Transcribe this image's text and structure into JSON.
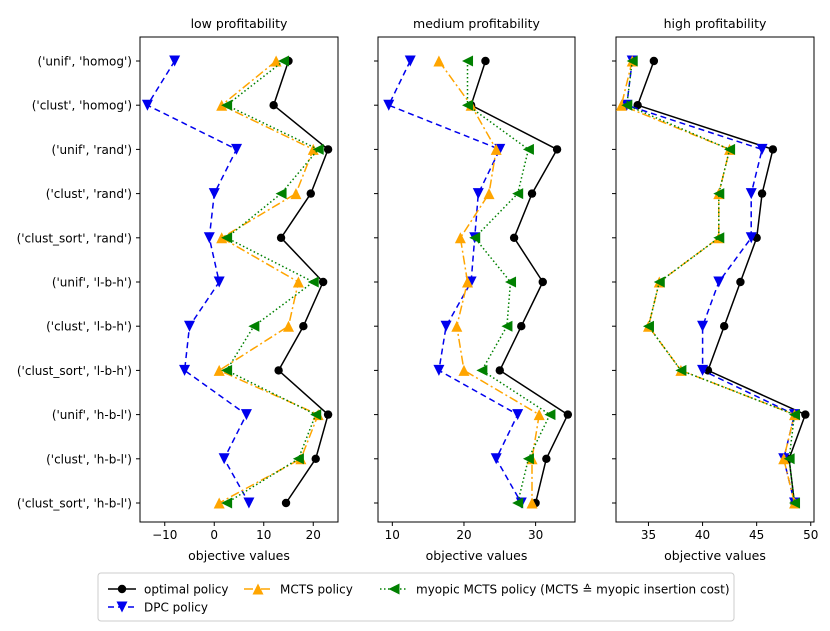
{
  "chart_data": {
    "type": "line",
    "categories": [
      "('unif', 'homog')",
      "('clust', 'homog')",
      "('unif', 'rand')",
      "('clust', 'rand')",
      "('clust_sort', 'rand')",
      "('unif', 'l-b-h')",
      "('clust', 'l-b-h')",
      "('clust_sort', 'l-b-h')",
      "('unif', 'h-b-l')",
      "('clust', 'h-b-l')",
      "('clust_sort', 'h-b-l')"
    ],
    "xlabel": "objective values",
    "legend_position": "bottom-center",
    "series_styles": [
      {
        "name": "optimal policy",
        "color": "#000000",
        "dash": "",
        "marker": "circle"
      },
      {
        "name": "DPC policy",
        "color": "#0000ee",
        "dash": "6,4",
        "marker": "triangle-down"
      },
      {
        "name": "MCTS policy",
        "color": "#ffa500",
        "dash": "9,3,2,3",
        "marker": "triangle-up"
      },
      {
        "name": "myopic MCTS policy (MCTS ≙ myopic insertion cost)",
        "color": "#008000",
        "dash": "1.5,2.5",
        "marker": "triangle-left"
      }
    ],
    "panels": [
      {
        "title": "low profitability",
        "xlim": [
          -15,
          25
        ],
        "xticks": [
          -10,
          0,
          10,
          20
        ],
        "series": [
          {
            "name": "optimal policy",
            "values": [
              15,
              12,
              23,
              19.5,
              13.5,
              22,
              18,
              13,
              23,
              20.5,
              14.5
            ]
          },
          {
            "name": "DPC policy",
            "values": [
              -8,
              -13.5,
              4.5,
              0,
              -1,
              1,
              -5,
              -6,
              6.5,
              2,
              7
            ]
          },
          {
            "name": "MCTS policy",
            "values": [
              12.5,
              1.5,
              20,
              16.5,
              1.5,
              17,
              15,
              1,
              21,
              17.5,
              1
            ]
          },
          {
            "name": "myopic MCTS policy (MCTS ≙ myopic insertion cost)",
            "values": [
              14,
              2.5,
              21,
              13.5,
              2.5,
              20,
              8,
              2.5,
              20.5,
              17,
              2.5
            ]
          }
        ]
      },
      {
        "title": "medium profitability",
        "xlim": [
          8,
          35.5
        ],
        "xticks": [
          10,
          20,
          30
        ],
        "series": [
          {
            "name": "optimal policy",
            "values": [
              23,
              21,
              33,
              29.5,
              27,
              31,
              28,
              25,
              34.5,
              31.5,
              30
            ]
          },
          {
            "name": "DPC policy",
            "values": [
              12.5,
              9.5,
              25,
              22,
              21.5,
              21,
              17.5,
              16.5,
              27.5,
              24.5,
              28
            ]
          },
          {
            "name": "MCTS policy",
            "values": [
              16.5,
              21,
              24.5,
              23.5,
              19.5,
              20.5,
              19,
              20,
              30.5,
              29.5,
              29.5
            ]
          },
          {
            "name": "myopic MCTS policy (MCTS ≙ myopic insertion cost)",
            "values": [
              20.5,
              20.5,
              29,
              27.5,
              21.5,
              26.5,
              26,
              22.5,
              32,
              29,
              27.5
            ]
          }
        ]
      },
      {
        "title": "high profitability",
        "xlim": [
          32,
          50.3
        ],
        "xticks": [
          35,
          40,
          45,
          50
        ],
        "series": [
          {
            "name": "optimal policy",
            "values": [
              35.5,
              34,
              46.5,
              45.5,
              45,
              43.5,
              42,
              40.5,
              49.5,
              48,
              48.5
            ]
          },
          {
            "name": "DPC policy",
            "values": [
              33.5,
              33,
              45.5,
              44.5,
              44.5,
              41.5,
              40,
              40,
              48.5,
              47.5,
              48.5
            ]
          },
          {
            "name": "MCTS policy",
            "values": [
              33.5,
              32.5,
              42.5,
              41.5,
              41.5,
              36,
              35,
              38,
              48.5,
              47.5,
              48.5
            ]
          },
          {
            "name": "myopic MCTS policy (MCTS ≙ myopic insertion cost)",
            "values": [
              33.5,
              33,
              42.5,
              41.5,
              41.5,
              36,
              35,
              38,
              48.5,
              48,
              48.5
            ]
          }
        ]
      }
    ]
  }
}
